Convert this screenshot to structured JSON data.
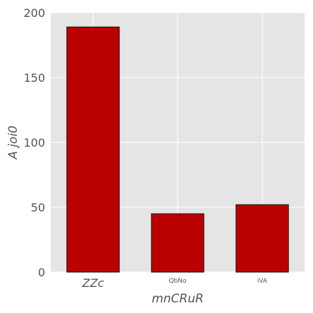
{
  "chart_data": {
    "type": "bar",
    "categories": [
      "ZZc",
      "QbNo",
      "iVA"
    ],
    "values": [
      189,
      45,
      52
    ],
    "xlabel": "mnCRuR",
    "ylabel": "A joi0",
    "ylim": [
      0,
      200
    ],
    "yticks": [
      0,
      50,
      100,
      150,
      200
    ],
    "grid": true,
    "colors": {
      "bar": "#bb0000",
      "bar_edge": "#111111",
      "plot_background": "#e5e5e5",
      "grid": "#ffffff"
    }
  }
}
